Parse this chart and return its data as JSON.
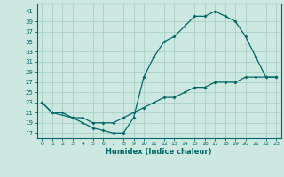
{
  "xlabel": "Humidex (Indice chaleur)",
  "bg_color": "#cce8e0",
  "line_color": "#006868",
  "grid_color": "#a8d0c8",
  "xlim": [
    -0.5,
    23.5
  ],
  "ylim": [
    16,
    42.5
  ],
  "xticks": [
    0,
    1,
    2,
    3,
    4,
    5,
    6,
    7,
    8,
    9,
    10,
    11,
    12,
    13,
    14,
    15,
    16,
    17,
    18,
    19,
    20,
    21,
    22,
    23
  ],
  "yticks": [
    17,
    19,
    21,
    23,
    25,
    27,
    29,
    31,
    33,
    35,
    37,
    39,
    41
  ],
  "line1_x": [
    0,
    1,
    3,
    4,
    5,
    6,
    7,
    8,
    9,
    10,
    11,
    12,
    13,
    14,
    15,
    16,
    17,
    18,
    19,
    20,
    21,
    22,
    23
  ],
  "line1_y": [
    23,
    21,
    20,
    19,
    18,
    17.5,
    17,
    17,
    20,
    28,
    32,
    35,
    36,
    38,
    40,
    40,
    41,
    40,
    39,
    36,
    32,
    28,
    28
  ],
  "line2_x": [
    0,
    1,
    2,
    3,
    4,
    5,
    6,
    7,
    8,
    9,
    10,
    11,
    12,
    13,
    14,
    15,
    16,
    17,
    18,
    19,
    20,
    21,
    22,
    23
  ],
  "line2_y": [
    23,
    21,
    21,
    20,
    20,
    19,
    19,
    19,
    20,
    21,
    22,
    23,
    24,
    24,
    25,
    26,
    26,
    27,
    27,
    27,
    28,
    28,
    28,
    28
  ]
}
